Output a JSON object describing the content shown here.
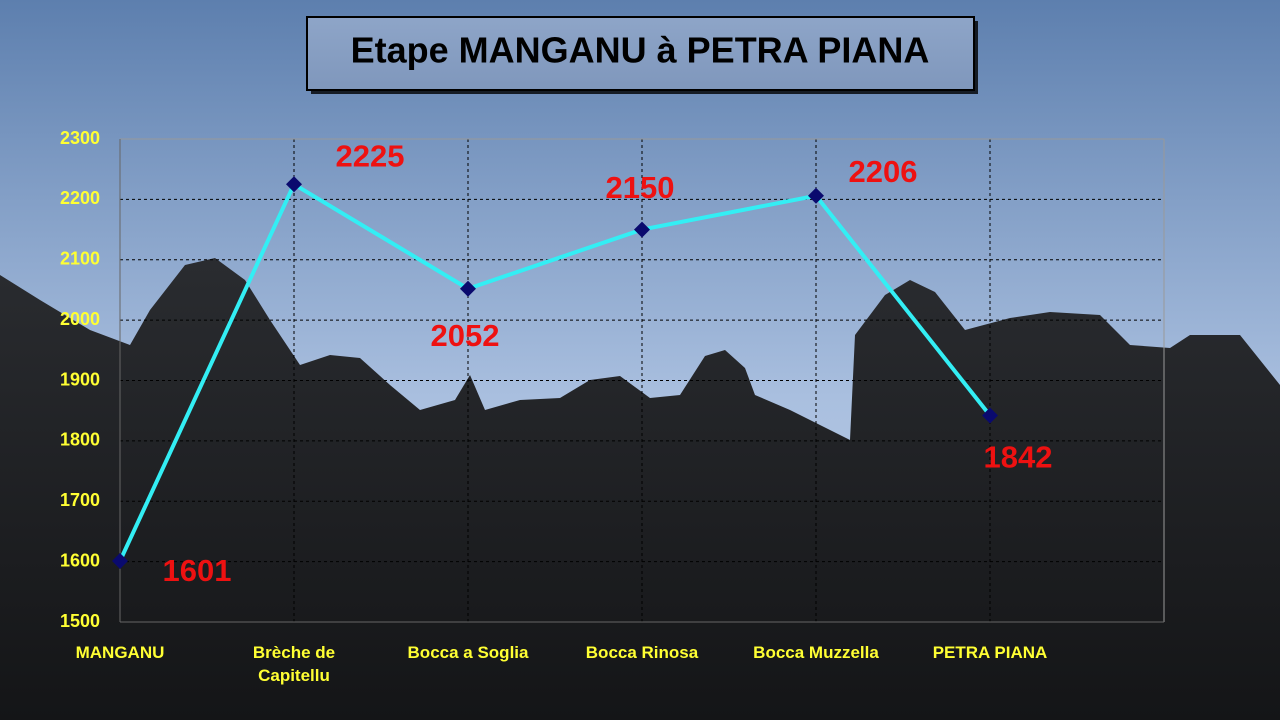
{
  "chart_data": {
    "type": "line",
    "title": "Etape  MANGANU à PETRA PIANA",
    "categories": [
      "MANGANU",
      "Brèche de Capitellu",
      "Bocca a Soglia",
      "Bocca Rinosa",
      "Bocca Muzzella",
      "PETRA PIANA"
    ],
    "series": [
      {
        "color": "#33eef4",
        "values": [
          1601,
          2225,
          2052,
          2150,
          2206,
          1842
        ]
      }
    ],
    "ylim": [
      1500,
      2300
    ],
    "yticks": [
      1500,
      1600,
      1700,
      1800,
      1900,
      2000,
      2100,
      2200,
      2300
    ],
    "grid": true
  }
}
